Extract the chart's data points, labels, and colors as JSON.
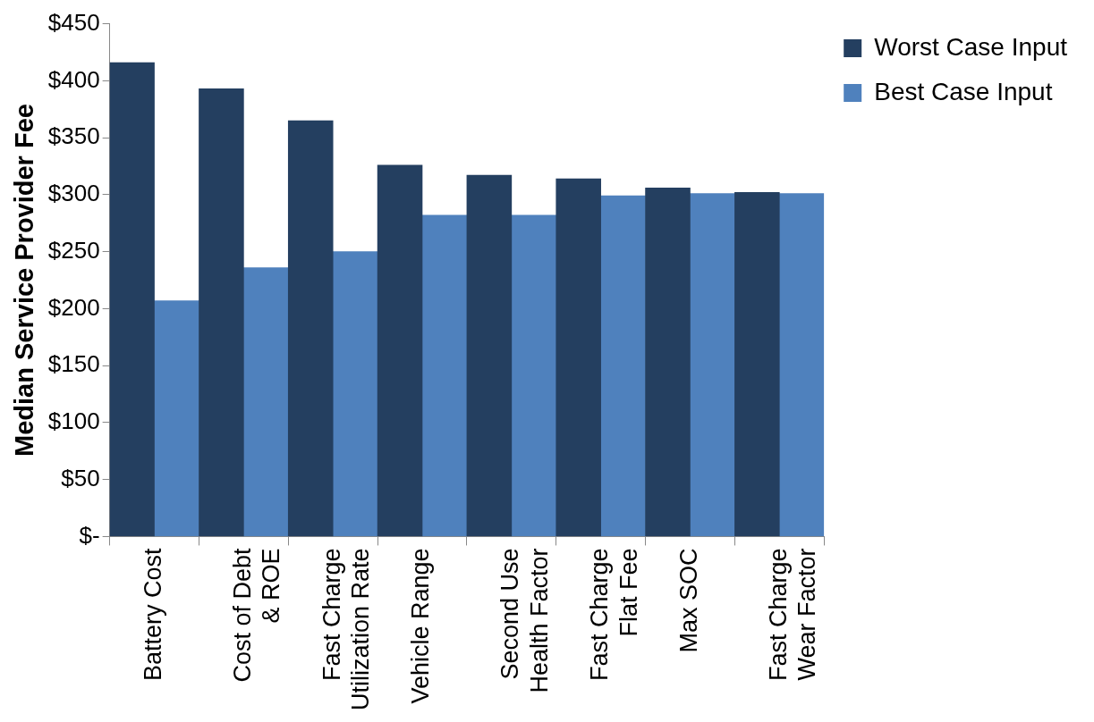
{
  "chart_data": {
    "type": "bar",
    "ylabel": "Median Service Provider Fee",
    "categories": [
      "Battery Cost",
      "Cost of Debt\n& ROE",
      "Fast Charge\nUtilization Rate",
      "Vehicle Range",
      "Second Use\nHealth Factor",
      "Fast Charge\nFlat Fee",
      "Max SOC",
      "Fast Charge\nWear Factor"
    ],
    "series": [
      {
        "name": "Worst Case Input",
        "color": "#243f60",
        "values": [
          416,
          393,
          365,
          326,
          317,
          314,
          306,
          302
        ]
      },
      {
        "name": "Best Case Input",
        "color": "#4f81bd",
        "values": [
          207,
          236,
          250,
          282,
          282,
          299,
          301,
          301
        ]
      }
    ],
    "ylim": [
      0,
      450
    ],
    "yticks": [
      {
        "value": 0,
        "label": "$-"
      },
      {
        "value": 50,
        "label": "$50"
      },
      {
        "value": 100,
        "label": "$100"
      },
      {
        "value": 150,
        "label": "$150"
      },
      {
        "value": 200,
        "label": "$200"
      },
      {
        "value": 250,
        "label": "$250"
      },
      {
        "value": 300,
        "label": "$300"
      },
      {
        "value": 350,
        "label": "$350"
      },
      {
        "value": 400,
        "label": "$400"
      },
      {
        "value": 450,
        "label": "$450"
      }
    ],
    "grid": false,
    "legend": "top right"
  }
}
